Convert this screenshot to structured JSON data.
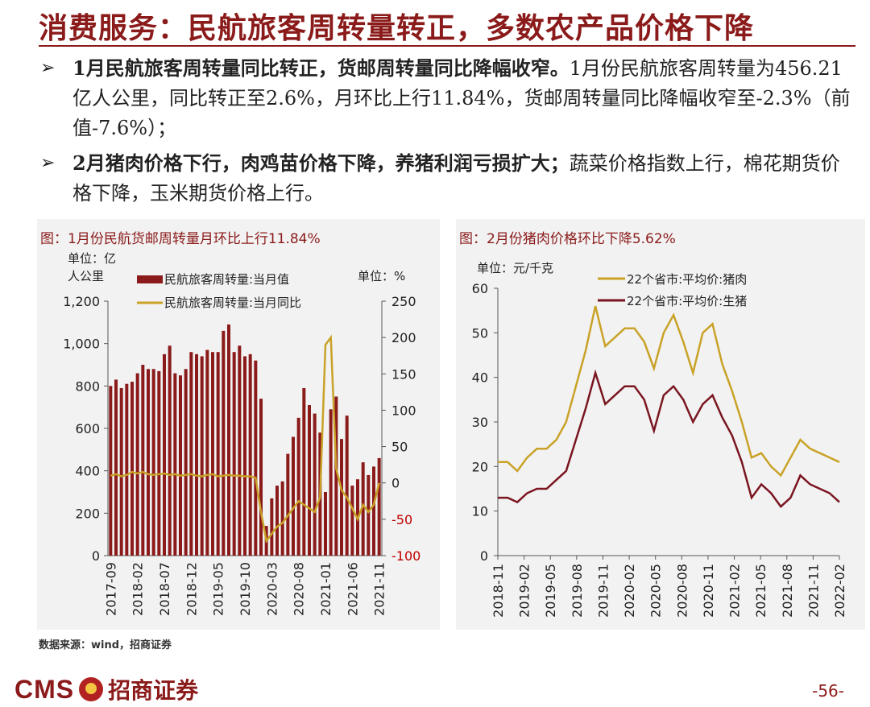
{
  "slide": {
    "title": "消费服务：民航旅客周转量转正，多数农产品价格下降",
    "page_number": "-56-",
    "source": "数据来源：wind，招商证券",
    "logo": {
      "en": "CMS",
      "cn": "招商证券"
    }
  },
  "bullets": [
    {
      "bold": "1月民航旅客周转量同比转正，货邮周转量同比降幅收窄。",
      "text": "1月份民航旅客周转量为456.21亿人公里，同比转正至2.6%，月环比上行11.84%，货邮周转量同比降幅收窄至-2.3%（前值-7.6%）；"
    },
    {
      "bold": "2月猪肉价格下行，肉鸡苗价格下降，养猪利润亏损扩大；",
      "text": "蔬菜价格指数上行，棉花期货价格下降，玉米期货价格上行。"
    }
  ],
  "chart_data": [
    {
      "type": "bar",
      "title": "图：1月份民航货邮周转量月环比上行11.84%",
      "y_left_unit": "单位：亿人公里",
      "y_right_unit": "单位：%",
      "left_ylim": [
        0,
        1200
      ],
      "left_ticks": [
        "0",
        "200",
        "400",
        "600",
        "800",
        "1,000",
        "1,200"
      ],
      "right_ylim": [
        -100,
        250
      ],
      "right_ticks": [
        "-100",
        "-50",
        "0",
        "50",
        "100",
        "150",
        "200",
        "250"
      ],
      "x_ticks": [
        "2017-09",
        "2018-02",
        "2018-07",
        "2018-12",
        "2019-05",
        "2019-10",
        "2020-03",
        "2020-08",
        "2021-01",
        "2021-06",
        "2021-11"
      ],
      "x_tick_index": [
        0,
        5,
        10,
        15,
        20,
        25,
        30,
        35,
        40,
        45,
        50
      ],
      "series": [
        {
          "name": "民航旅客周转量:当月值",
          "kind": "bar",
          "color": "#8b1a1a",
          "values": [
            800,
            830,
            790,
            810,
            820,
            860,
            900,
            880,
            880,
            870,
            950,
            990,
            860,
            850,
            880,
            960,
            950,
            940,
            970,
            960,
            960,
            1060,
            1090,
            960,
            990,
            940,
            950,
            920,
            740,
            140,
            270,
            330,
            350,
            480,
            560,
            650,
            790,
            710,
            670,
            580,
            300,
            690,
            750,
            550,
            660,
            330,
            360,
            440,
            380,
            420,
            460
          ]
        },
        {
          "name": "民航旅客周转量:当月同比",
          "kind": "line",
          "color": "#c9a227",
          "values": [
            10,
            12,
            9,
            11,
            15,
            13,
            15,
            12,
            11,
            12,
            13,
            11,
            12,
            10,
            11,
            12,
            10,
            9,
            11,
            12,
            9,
            10,
            11,
            10,
            10,
            9,
            9,
            7,
            -40,
            -80,
            -70,
            -60,
            -55,
            -45,
            -35,
            -25,
            -30,
            -35,
            -40,
            -20,
            190,
            200,
            20,
            -10,
            -20,
            -35,
            -50,
            -30,
            -40,
            -30,
            0
          ]
        }
      ]
    },
    {
      "type": "line",
      "title": "图：2月份猪肉价格环比下降5.62%",
      "y_unit": "单位：元/千克",
      "ylim": [
        0,
        60
      ],
      "y_ticks": [
        "0",
        "10",
        "20",
        "30",
        "40",
        "50",
        "60"
      ],
      "x_ticks": [
        "2018-11",
        "2019-02",
        "2019-05",
        "2019-08",
        "2019-11",
        "2020-02",
        "2020-05",
        "2020-08",
        "2020-11",
        "2021-02",
        "2021-05",
        "2021-08",
        "2021-11",
        "2022-02"
      ],
      "series": [
        {
          "name": "22个省市:平均价:猪肉",
          "color": "#c9a227",
          "values": [
            21,
            21,
            19,
            22,
            24,
            24,
            26,
            30,
            38,
            46,
            56,
            47,
            49,
            51,
            51,
            48,
            42,
            50,
            54,
            48,
            41,
            50,
            52,
            43,
            37,
            30,
            22,
            23,
            20,
            18,
            22,
            26,
            24,
            23,
            22,
            21
          ]
        },
        {
          "name": "22个省市:平均价:生猪",
          "color": "#7a1520",
          "values": [
            13,
            13,
            12,
            14,
            15,
            15,
            17,
            19,
            26,
            33,
            41,
            34,
            36,
            38,
            38,
            35,
            28,
            36,
            38,
            35,
            30,
            34,
            36,
            31,
            27,
            21,
            13,
            16,
            14,
            11,
            13,
            18,
            16,
            15,
            14,
            12
          ]
        }
      ]
    }
  ]
}
